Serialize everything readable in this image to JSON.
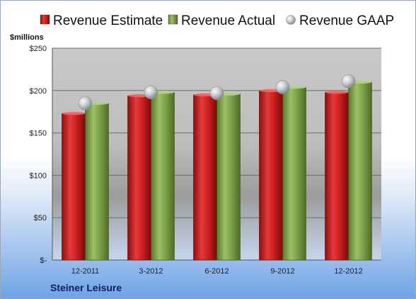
{
  "chart_data": {
    "type": "bar",
    "ylabel": "$millions",
    "ylim": [
      0,
      250
    ],
    "yticks": [
      0,
      50,
      100,
      150,
      200,
      250
    ],
    "ytick_labels": [
      "$-",
      "$50",
      "$100",
      "$150",
      "$200",
      "$250"
    ],
    "categories": [
      "12-2011",
      "3-2012",
      "6-2012",
      "9-2012",
      "12-2012"
    ],
    "series": [
      {
        "name": "Revenue Estimate",
        "kind": "bar",
        "color": "#cc1f1f",
        "values": [
          173,
          194,
          195,
          200,
          198
        ]
      },
      {
        "name": "Revenue Actual",
        "kind": "bar",
        "color": "#7ea24a",
        "values": [
          185,
          198,
          196,
          204,
          210
        ]
      },
      {
        "name": "Revenue GAAP",
        "kind": "marker",
        "color": "#b8bcc4",
        "values": [
          185,
          198,
          197,
          204,
          211
        ]
      }
    ],
    "grid": true,
    "legend_position": "top",
    "company": "Steiner Leisure"
  }
}
